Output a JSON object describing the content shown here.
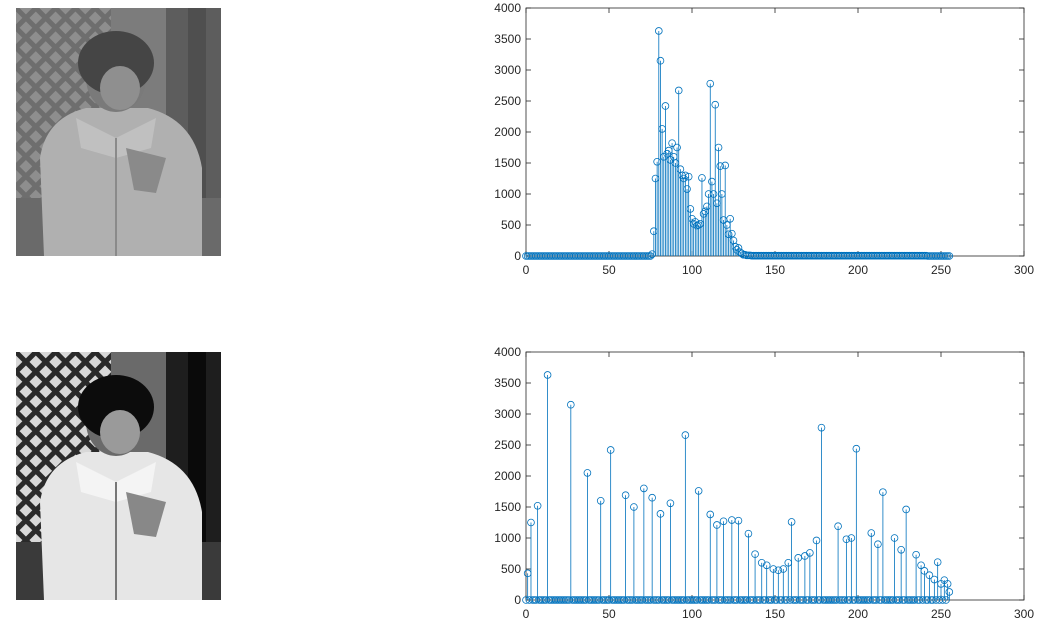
{
  "images": [
    {
      "name": "original-photo",
      "description": "low-contrast grayscale photo of a child in a jacket in front of a lattice fence"
    },
    {
      "name": "equalized-photo",
      "description": "histogram-equalized, high-contrast grayscale photo of the same child"
    }
  ],
  "colors": {
    "stem": "#0072bd",
    "axis": "#262626",
    "background": "#ffffff"
  },
  "chart_data": [
    {
      "type": "stem",
      "title": "",
      "xlabel": "",
      "ylabel": "",
      "xlim": [
        0,
        300
      ],
      "ylim": [
        0,
        4000
      ],
      "xticks": [
        0,
        50,
        100,
        150,
        200,
        250,
        300
      ],
      "yticks": [
        0,
        500,
        1000,
        1500,
        2000,
        2500,
        3000,
        3500,
        4000
      ],
      "x_range": [
        0,
        255
      ],
      "values": [
        0,
        0,
        0,
        0,
        0,
        0,
        0,
        0,
        0,
        0,
        0,
        0,
        0,
        0,
        0,
        0,
        0,
        0,
        0,
        0,
        0,
        0,
        0,
        0,
        0,
        0,
        0,
        0,
        0,
        0,
        0,
        0,
        0,
        0,
        0,
        0,
        0,
        0,
        0,
        0,
        0,
        0,
        0,
        0,
        0,
        0,
        0,
        0,
        0,
        0,
        0,
        0,
        0,
        0,
        0,
        0,
        0,
        0,
        0,
        0,
        0,
        0,
        0,
        0,
        0,
        0,
        0,
        0,
        0,
        0,
        0,
        0,
        0,
        0,
        0,
        0,
        30,
        400,
        1250,
        1520,
        3630,
        3150,
        2050,
        1600,
        2420,
        1650,
        1700,
        1550,
        1820,
        1600,
        1500,
        1750,
        2670,
        1400,
        1300,
        1250,
        1300,
        1080,
        1280,
        760,
        600,
        520,
        550,
        490,
        500,
        520,
        1260,
        680,
        720,
        800,
        1000,
        2780,
        1200,
        1000,
        2440,
        850,
        1750,
        1450,
        1000,
        580,
        1460,
        500,
        350,
        600,
        360,
        250,
        150,
        100,
        130,
        60,
        40,
        20,
        20,
        10,
        10,
        10,
        5,
        5,
        5,
        5,
        5,
        5,
        5,
        5,
        5,
        5,
        5,
        5,
        5,
        5,
        5,
        5,
        5,
        5,
        5,
        5,
        5,
        5,
        5,
        5,
        5,
        5,
        5,
        5,
        5,
        5,
        5,
        5,
        5,
        5,
        5,
        5,
        5,
        5,
        5,
        5,
        5,
        5,
        5,
        5,
        5,
        5,
        5,
        5,
        5,
        5,
        5,
        5,
        5,
        5,
        5,
        5,
        5,
        5,
        5,
        5,
        5,
        5,
        5,
        5,
        5,
        5,
        5,
        5,
        5,
        5,
        5,
        5,
        5,
        5,
        5,
        5,
        5,
        5,
        5,
        5,
        5,
        5,
        5,
        5,
        5,
        5,
        5,
        5,
        5,
        5,
        5,
        5,
        5,
        5,
        5,
        5,
        5,
        5,
        5,
        5,
        5,
        5,
        5,
        5,
        5,
        5
      ]
    },
    {
      "type": "stem",
      "title": "",
      "xlabel": "",
      "ylabel": "",
      "xlim": [
        0,
        300
      ],
      "ylim": [
        0,
        4000
      ],
      "xticks": [
        0,
        50,
        100,
        150,
        200,
        250,
        300
      ],
      "yticks": [
        0,
        500,
        1000,
        1500,
        2000,
        2500,
        3000,
        3500,
        4000
      ],
      "x_range": [
        0,
        255
      ],
      "peaks": [
        [
          1,
          430
        ],
        [
          3,
          1250
        ],
        [
          7,
          1520
        ],
        [
          13,
          3630
        ],
        [
          27,
          3150
        ],
        [
          37,
          2050
        ],
        [
          45,
          1600
        ],
        [
          51,
          2420
        ],
        [
          60,
          1690
        ],
        [
          65,
          1500
        ],
        [
          71,
          1800
        ],
        [
          76,
          1650
        ],
        [
          81,
          1390
        ],
        [
          87,
          1560
        ],
        [
          96,
          2660
        ],
        [
          104,
          1760
        ],
        [
          111,
          1380
        ],
        [
          115,
          1210
        ],
        [
          119,
          1270
        ],
        [
          124,
          1290
        ],
        [
          128,
          1280
        ],
        [
          134,
          1070
        ],
        [
          138,
          740
        ],
        [
          142,
          600
        ],
        [
          145,
          560
        ],
        [
          149,
          500
        ],
        [
          152,
          480
        ],
        [
          155,
          500
        ],
        [
          158,
          600
        ],
        [
          160,
          1260
        ],
        [
          164,
          680
        ],
        [
          168,
          710
        ],
        [
          171,
          760
        ],
        [
          175,
          960
        ],
        [
          178,
          2780
        ],
        [
          188,
          1190
        ],
        [
          193,
          980
        ],
        [
          196,
          1000
        ],
        [
          199,
          2440
        ],
        [
          208,
          1080
        ],
        [
          212,
          900
        ],
        [
          215,
          1740
        ],
        [
          222,
          1000
        ],
        [
          226,
          810
        ],
        [
          229,
          1460
        ],
        [
          235,
          730
        ],
        [
          238,
          560
        ],
        [
          240,
          470
        ],
        [
          243,
          400
        ],
        [
          246,
          330
        ],
        [
          248,
          610
        ],
        [
          250,
          260
        ],
        [
          252,
          320
        ],
        [
          254,
          260
        ],
        [
          255,
          130
        ]
      ]
    }
  ]
}
